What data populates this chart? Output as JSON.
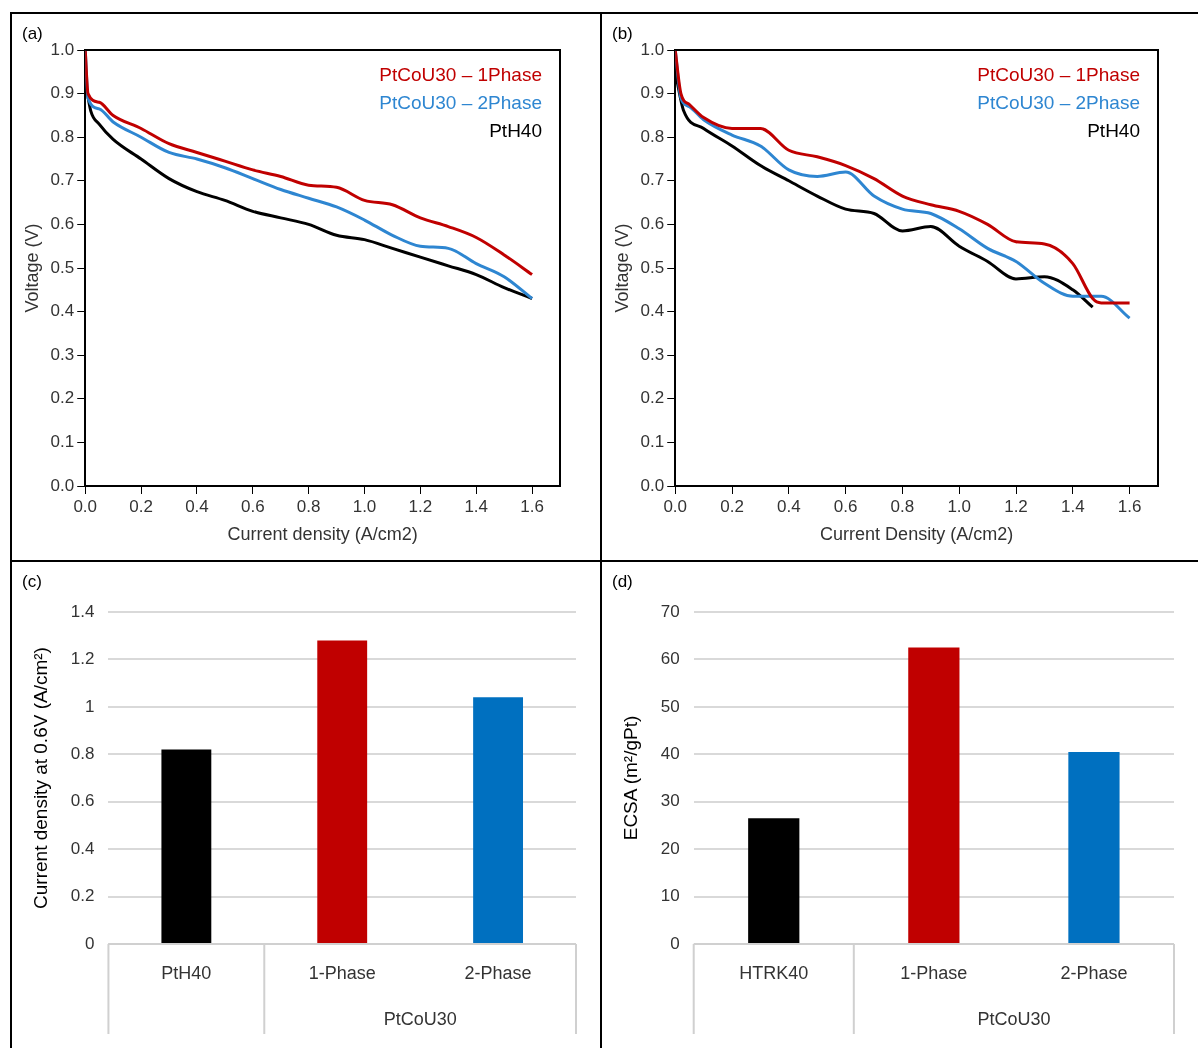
{
  "chart_data": [
    {
      "type": "line",
      "title": "(a)",
      "xlabel": "Current density (A/cm2)",
      "ylabel": "Voltage (V)",
      "xlim": [
        0,
        1.7
      ],
      "ylim": [
        0,
        1.0
      ],
      "xticks": [
        {
          "value": 0,
          "label": "0.0"
        },
        {
          "value": 0.2,
          "label": "0.2"
        },
        {
          "value": 0.4,
          "label": "0.4"
        },
        {
          "value": 0.6,
          "label": "0.6"
        },
        {
          "value": 0.8,
          "label": "0.8"
        },
        {
          "value": 1.0,
          "label": "1.0"
        },
        {
          "value": 1.2,
          "label": "1.2"
        },
        {
          "value": 1.4,
          "label": "1.4"
        },
        {
          "value": 1.6,
          "label": "1.6"
        }
      ],
      "yticks": [
        {
          "value": 0,
          "label": "0.0"
        },
        {
          "value": 0.1,
          "label": "0.1"
        },
        {
          "value": 0.2,
          "label": "0.2"
        },
        {
          "value": 0.3,
          "label": "0.3"
        },
        {
          "value": 0.4,
          "label": "0.4"
        },
        {
          "value": 0.5,
          "label": "0.5"
        },
        {
          "value": 0.6,
          "label": "0.6"
        },
        {
          "value": 0.7,
          "label": "0.7"
        },
        {
          "value": 0.8,
          "label": "0.8"
        },
        {
          "value": 0.9,
          "label": "0.9"
        },
        {
          "value": 1.0,
          "label": "1.0"
        }
      ],
      "legend": "top right",
      "marker": "none",
      "line_style": "solid",
      "series": [
        {
          "name": "PtCoU30 – 1Phase",
          "color": "#c00000",
          "x": [
            0,
            0.01,
            0.05,
            0.1,
            0.2,
            0.3,
            0.4,
            0.5,
            0.6,
            0.7,
            0.8,
            0.9,
            1.0,
            1.1,
            1.2,
            1.3,
            1.4,
            1.5,
            1.6
          ],
          "values": [
            1.0,
            0.9,
            0.88,
            0.85,
            0.82,
            0.785,
            0.765,
            0.745,
            0.725,
            0.71,
            0.69,
            0.685,
            0.655,
            0.645,
            0.615,
            0.595,
            0.57,
            0.53,
            0.485
          ]
        },
        {
          "name": "PtCoU30 – 2Phase",
          "color": "#2e86d1",
          "x": [
            0,
            0.01,
            0.05,
            0.1,
            0.2,
            0.3,
            0.4,
            0.5,
            0.6,
            0.7,
            0.8,
            0.9,
            1.0,
            1.1,
            1.2,
            1.3,
            1.4,
            1.5,
            1.6
          ],
          "values": [
            1.0,
            0.89,
            0.865,
            0.835,
            0.8,
            0.765,
            0.75,
            0.73,
            0.705,
            0.68,
            0.66,
            0.64,
            0.61,
            0.575,
            0.55,
            0.545,
            0.51,
            0.48,
            0.43
          ]
        },
        {
          "name": "PtH40",
          "color": "#000000",
          "x": [
            0,
            0.02,
            0.05,
            0.1,
            0.2,
            0.3,
            0.4,
            0.5,
            0.6,
            0.7,
            0.8,
            0.9,
            1.0,
            1.1,
            1.2,
            1.3,
            1.4,
            1.5,
            1.6
          ],
          "values": [
            0.93,
            0.86,
            0.83,
            0.795,
            0.75,
            0.705,
            0.675,
            0.655,
            0.63,
            0.615,
            0.6,
            0.575,
            0.565,
            0.545,
            0.525,
            0.505,
            0.485,
            0.455,
            0.43
          ]
        }
      ]
    },
    {
      "type": "line",
      "title": "(b)",
      "xlabel": "Current Density (A/cm2)",
      "ylabel": "Voltage (V)",
      "xlim": [
        0,
        1.7
      ],
      "ylim": [
        0,
        1.0
      ],
      "xticks": [
        {
          "value": 0,
          "label": "0.0"
        },
        {
          "value": 0.2,
          "label": "0.2"
        },
        {
          "value": 0.4,
          "label": "0.4"
        },
        {
          "value": 0.6,
          "label": "0.6"
        },
        {
          "value": 0.8,
          "label": "0.8"
        },
        {
          "value": 1.0,
          "label": "1.0"
        },
        {
          "value": 1.2,
          "label": "1.2"
        },
        {
          "value": 1.4,
          "label": "1.4"
        },
        {
          "value": 1.6,
          "label": "1.6"
        }
      ],
      "yticks": [
        {
          "value": 0,
          "label": "0.0"
        },
        {
          "value": 0.1,
          "label": "0.1"
        },
        {
          "value": 0.2,
          "label": "0.2"
        },
        {
          "value": 0.3,
          "label": "0.3"
        },
        {
          "value": 0.4,
          "label": "0.4"
        },
        {
          "value": 0.5,
          "label": "0.5"
        },
        {
          "value": 0.6,
          "label": "0.6"
        },
        {
          "value": 0.7,
          "label": "0.7"
        },
        {
          "value": 0.8,
          "label": "0.8"
        },
        {
          "value": 0.9,
          "label": "0.9"
        },
        {
          "value": 1.0,
          "label": "1.0"
        }
      ],
      "legend": "top right",
      "marker": "none",
      "line_style": "solid",
      "series": [
        {
          "name": "PtCoU30 – 1Phase",
          "color": "#c00000",
          "x": [
            0,
            0.02,
            0.05,
            0.1,
            0.2,
            0.3,
            0.4,
            0.5,
            0.6,
            0.7,
            0.8,
            0.9,
            1.0,
            1.1,
            1.2,
            1.3,
            1.4,
            1.47,
            1.5,
            1.6
          ],
          "values": [
            1.0,
            0.9,
            0.875,
            0.845,
            0.82,
            0.82,
            0.77,
            0.755,
            0.735,
            0.705,
            0.665,
            0.645,
            0.63,
            0.6,
            0.56,
            0.555,
            0.51,
            0.43,
            0.42,
            0.42
          ]
        },
        {
          "name": "PtCoU30 – 2Phase",
          "color": "#2e86d1",
          "x": [
            0,
            0.02,
            0.05,
            0.1,
            0.2,
            0.3,
            0.4,
            0.5,
            0.6,
            0.7,
            0.8,
            0.9,
            1.0,
            1.1,
            1.2,
            1.3,
            1.4,
            1.5,
            1.6
          ],
          "values": [
            1.0,
            0.89,
            0.87,
            0.84,
            0.805,
            0.78,
            0.725,
            0.71,
            0.72,
            0.665,
            0.635,
            0.625,
            0.59,
            0.545,
            0.515,
            0.465,
            0.435,
            0.435,
            0.385
          ]
        },
        {
          "name": "PtH40",
          "color": "#000000",
          "x": [
            0,
            0.03,
            0.1,
            0.2,
            0.3,
            0.4,
            0.5,
            0.6,
            0.7,
            0.8,
            0.9,
            1.0,
            1.1,
            1.2,
            1.3,
            1.4,
            1.47
          ],
          "values": [
            0.95,
            0.86,
            0.82,
            0.78,
            0.735,
            0.7,
            0.665,
            0.635,
            0.625,
            0.585,
            0.595,
            0.55,
            0.515,
            0.475,
            0.48,
            0.45,
            0.41
          ]
        }
      ]
    },
    {
      "type": "bar",
      "title": "(c)",
      "ylabel": "Current density at 0.6V (A/cm²)",
      "categories": [
        "PtH40",
        "1-Phase",
        "2-Phase"
      ],
      "values": [
        0.82,
        1.28,
        1.04
      ],
      "colors": [
        "#000000",
        "#c00000",
        "#0070c0"
      ],
      "ylim": [
        0,
        1.4
      ],
      "yticks": [
        0,
        0.2,
        0.4,
        0.6,
        0.8,
        1,
        1.2,
        1.4
      ],
      "grid": "y",
      "annotations": [
        "PtCoU30"
      ]
    },
    {
      "type": "bar",
      "title": "(d)",
      "ylabel": "ECSA (m²/gPt)",
      "categories": [
        "HTRK40",
        "1-Phase",
        "2-Phase"
      ],
      "values": [
        26.5,
        62.5,
        40.5
      ],
      "colors": [
        "#000000",
        "#c00000",
        "#0070c0"
      ],
      "ylim": [
        0,
        70
      ],
      "yticks": [
        0,
        10,
        20,
        30,
        40,
        50,
        60,
        70
      ],
      "grid": "y",
      "annotations": [
        "PtCoU30"
      ]
    }
  ]
}
